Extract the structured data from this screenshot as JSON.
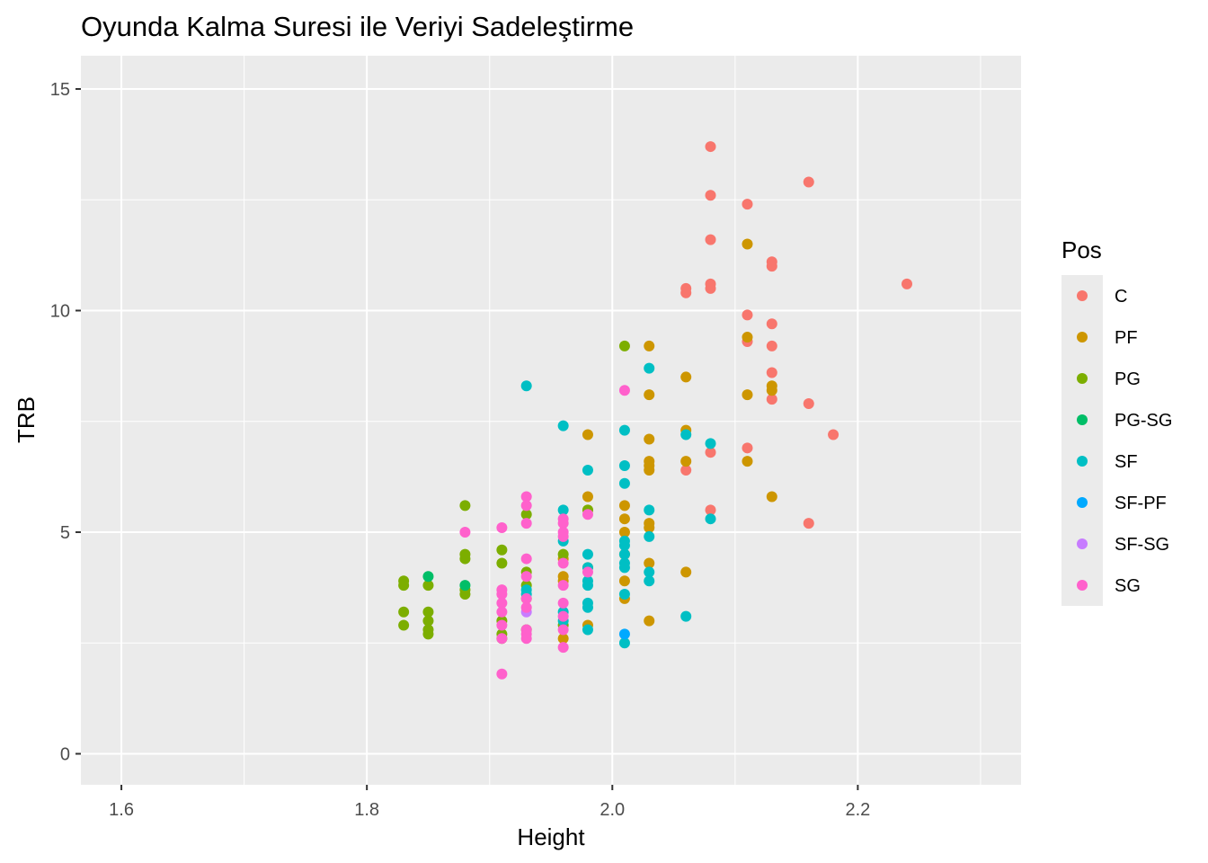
{
  "chart_data": {
    "type": "scatter",
    "title": "Oyunda Kalma Suresi ile Veriyi Sadeleştirme",
    "xlabel": "Height",
    "ylabel": "TRB",
    "xlim": [
      1.567,
      2.333
    ],
    "ylim": [
      -0.7,
      15.75
    ],
    "x_ticks": [
      1.6,
      1.8,
      2.0,
      2.2
    ],
    "x_tick_labels": [
      "1.6",
      "1.8",
      "2.0",
      "2.2"
    ],
    "y_ticks": [
      0,
      5,
      10,
      15
    ],
    "y_tick_labels": [
      "0",
      "5",
      "10",
      "15"
    ],
    "grid": true,
    "legend": {
      "title": "Pos",
      "placement": "right"
    },
    "series": [
      {
        "name": "C",
        "color": "#F8766D",
        "points": [
          [
            2.08,
            13.7
          ],
          [
            2.16,
            12.9
          ],
          [
            2.08,
            12.6
          ],
          [
            2.11,
            12.4
          ],
          [
            2.08,
            11.6
          ],
          [
            2.13,
            11.1
          ],
          [
            2.13,
            11.0
          ],
          [
            2.24,
            10.6
          ],
          [
            2.06,
            10.5
          ],
          [
            2.06,
            10.4
          ],
          [
            2.08,
            10.6
          ],
          [
            2.08,
            10.5
          ],
          [
            2.11,
            9.9
          ],
          [
            2.13,
            9.7
          ],
          [
            2.11,
            9.3
          ],
          [
            2.13,
            9.2
          ],
          [
            2.13,
            8.6
          ],
          [
            2.13,
            8.0
          ],
          [
            2.16,
            7.9
          ],
          [
            2.18,
            7.2
          ],
          [
            2.11,
            6.9
          ],
          [
            2.08,
            6.8
          ],
          [
            2.06,
            6.4
          ],
          [
            2.08,
            5.5
          ],
          [
            2.16,
            5.2
          ]
        ]
      },
      {
        "name": "PF",
        "color": "#CD9600",
        "points": [
          [
            2.11,
            11.5
          ],
          [
            2.03,
            9.2
          ],
          [
            2.11,
            9.4
          ],
          [
            2.06,
            8.5
          ],
          [
            2.13,
            8.3
          ],
          [
            2.13,
            8.2
          ],
          [
            2.03,
            8.1
          ],
          [
            2.11,
            8.1
          ],
          [
            2.06,
            7.3
          ],
          [
            1.98,
            7.2
          ],
          [
            2.03,
            7.1
          ],
          [
            2.06,
            6.6
          ],
          [
            2.11,
            6.6
          ],
          [
            2.03,
            6.6
          ],
          [
            2.03,
            6.5
          ],
          [
            2.03,
            6.4
          ],
          [
            1.98,
            5.8
          ],
          [
            2.13,
            5.8
          ],
          [
            2.01,
            5.6
          ],
          [
            1.98,
            5.5
          ],
          [
            2.01,
            5.3
          ],
          [
            2.03,
            5.2
          ],
          [
            2.03,
            5.1
          ],
          [
            2.01,
            5.0
          ],
          [
            2.01,
            4.5
          ],
          [
            1.96,
            4.4
          ],
          [
            2.03,
            4.3
          ],
          [
            1.98,
            4.2
          ],
          [
            2.06,
            4.1
          ],
          [
            1.96,
            4.0
          ],
          [
            1.96,
            3.9
          ],
          [
            2.01,
            3.9
          ],
          [
            2.01,
            3.5
          ],
          [
            1.93,
            3.5
          ],
          [
            2.03,
            3.0
          ],
          [
            1.98,
            2.9
          ],
          [
            1.96,
            2.6
          ]
        ]
      },
      {
        "name": "PG",
        "color": "#7CAE00",
        "points": [
          [
            2.01,
            9.2
          ],
          [
            1.88,
            5.6
          ],
          [
            1.93,
            5.4
          ],
          [
            1.98,
            5.5
          ],
          [
            1.91,
            4.6
          ],
          [
            1.88,
            4.5
          ],
          [
            1.88,
            4.4
          ],
          [
            1.91,
            4.3
          ],
          [
            1.93,
            4.1
          ],
          [
            1.96,
            4.5
          ],
          [
            1.83,
            3.9
          ],
          [
            1.83,
            3.8
          ],
          [
            1.85,
            3.8
          ],
          [
            1.88,
            3.7
          ],
          [
            1.88,
            3.6
          ],
          [
            1.93,
            3.8
          ],
          [
            1.83,
            3.2
          ],
          [
            1.85,
            3.2
          ],
          [
            1.91,
            3.0
          ],
          [
            1.85,
            3.0
          ],
          [
            1.83,
            2.9
          ],
          [
            1.85,
            2.8
          ],
          [
            1.85,
            2.7
          ],
          [
            1.91,
            2.7
          ],
          [
            1.91,
            2.6
          ],
          [
            1.93,
            2.8
          ],
          [
            1.96,
            2.9
          ]
        ]
      },
      {
        "name": "PG-SG",
        "color": "#00BE67",
        "points": [
          [
            1.85,
            4.0
          ],
          [
            1.88,
            3.8
          ]
        ]
      },
      {
        "name": "SF",
        "color": "#00BFC4",
        "points": [
          [
            1.93,
            8.3
          ],
          [
            2.03,
            8.7
          ],
          [
            1.96,
            7.4
          ],
          [
            2.01,
            7.3
          ],
          [
            2.06,
            7.2
          ],
          [
            2.08,
            7.0
          ],
          [
            1.98,
            6.4
          ],
          [
            2.01,
            6.5
          ],
          [
            2.01,
            6.1
          ],
          [
            1.96,
            5.5
          ],
          [
            2.03,
            5.5
          ],
          [
            2.08,
            5.3
          ],
          [
            1.96,
            4.8
          ],
          [
            2.01,
            4.8
          ],
          [
            2.01,
            4.7
          ],
          [
            2.03,
            4.9
          ],
          [
            2.01,
            4.5
          ],
          [
            1.98,
            4.5
          ],
          [
            2.01,
            4.3
          ],
          [
            1.98,
            4.2
          ],
          [
            2.01,
            4.2
          ],
          [
            2.03,
            4.1
          ],
          [
            2.03,
            3.9
          ],
          [
            1.98,
            3.9
          ],
          [
            1.98,
            3.8
          ],
          [
            1.93,
            3.7
          ],
          [
            1.93,
            3.6
          ],
          [
            2.01,
            3.6
          ],
          [
            1.98,
            3.4
          ],
          [
            1.98,
            3.3
          ],
          [
            1.96,
            3.2
          ],
          [
            2.06,
            3.1
          ],
          [
            1.96,
            3.0
          ],
          [
            1.98,
            2.8
          ],
          [
            2.01,
            2.5
          ]
        ]
      },
      {
        "name": "SF-PF",
        "color": "#00A9FF",
        "points": [
          [
            2.01,
            2.7
          ]
        ]
      },
      {
        "name": "SF-SG",
        "color": "#C77CFF",
        "points": [
          [
            1.93,
            3.2
          ]
        ]
      },
      {
        "name": "SG",
        "color": "#FF61CC",
        "points": [
          [
            2.01,
            8.2
          ],
          [
            1.93,
            5.8
          ],
          [
            1.93,
            5.6
          ],
          [
            1.98,
            5.4
          ],
          [
            1.96,
            5.3
          ],
          [
            1.96,
            5.2
          ],
          [
            1.93,
            5.2
          ],
          [
            1.91,
            5.1
          ],
          [
            1.96,
            5.0
          ],
          [
            1.88,
            5.0
          ],
          [
            1.96,
            4.9
          ],
          [
            1.93,
            4.4
          ],
          [
            1.96,
            4.3
          ],
          [
            1.98,
            4.1
          ],
          [
            1.93,
            4.0
          ],
          [
            1.96,
            3.8
          ],
          [
            1.91,
            3.7
          ],
          [
            1.91,
            3.6
          ],
          [
            1.93,
            3.5
          ],
          [
            1.91,
            3.4
          ],
          [
            1.96,
            3.4
          ],
          [
            1.93,
            3.3
          ],
          [
            1.91,
            3.2
          ],
          [
            1.96,
            3.1
          ],
          [
            1.91,
            2.9
          ],
          [
            1.93,
            2.8
          ],
          [
            1.96,
            2.8
          ],
          [
            1.93,
            2.7
          ],
          [
            1.91,
            2.6
          ],
          [
            1.93,
            2.6
          ],
          [
            1.96,
            2.4
          ],
          [
            1.91,
            1.8
          ]
        ]
      }
    ]
  }
}
